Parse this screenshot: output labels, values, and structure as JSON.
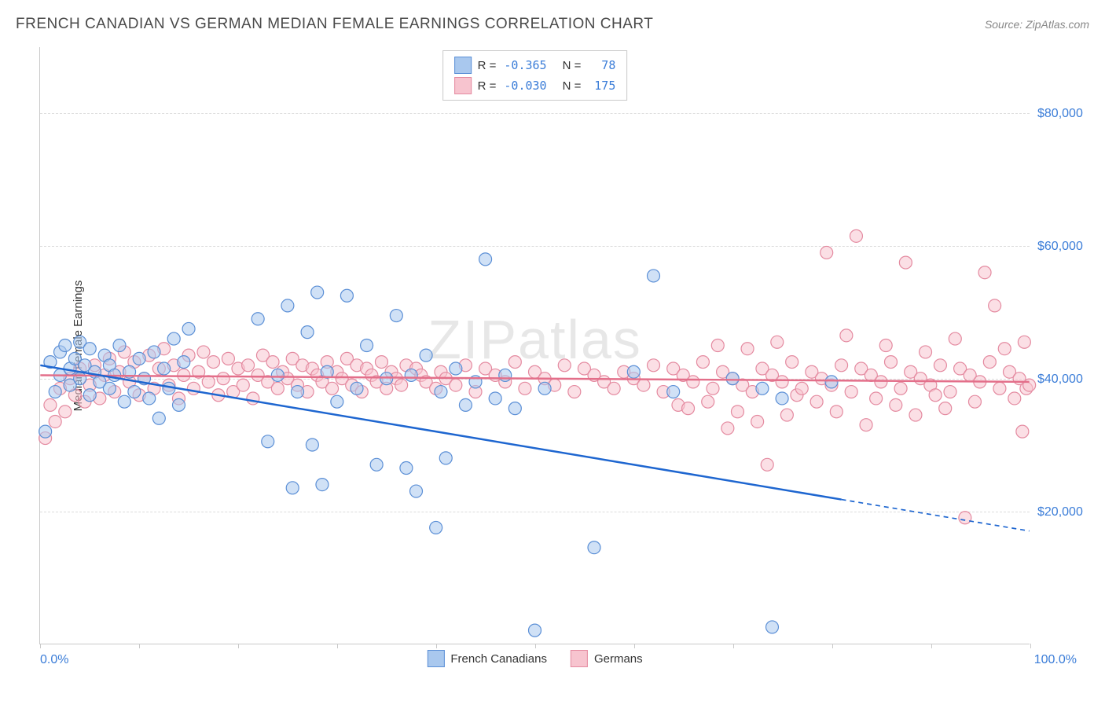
{
  "title": "FRENCH CANADIAN VS GERMAN MEDIAN FEMALE EARNINGS CORRELATION CHART",
  "source": "Source: ZipAtlas.com",
  "watermark": "ZIPatlas",
  "chart": {
    "type": "scatter",
    "y_label": "Median Female Earnings",
    "xlim": [
      0,
      100
    ],
    "ylim": [
      0,
      90000
    ],
    "x_start_label": "0.0%",
    "x_end_label": "100.0%",
    "x_ticks": [
      0,
      10,
      20,
      30,
      40,
      50,
      60,
      70,
      80,
      90,
      100
    ],
    "y_gridlines": [
      {
        "value": 20000,
        "label": "$20,000"
      },
      {
        "value": 40000,
        "label": "$40,000"
      },
      {
        "value": 60000,
        "label": "$60,000"
      },
      {
        "value": 80000,
        "label": "$80,000"
      }
    ],
    "grid_color": "#dcdcdc",
    "background_color": "#ffffff",
    "axis_color": "#c9c9c9",
    "tick_label_color": "#3b7dd8",
    "marker_radius": 8,
    "marker_stroke_width": 1.2,
    "trend_line_width": 2.5,
    "series": [
      {
        "name": "French Canadians",
        "fill_color": "#a9c8ee",
        "fill_opacity": 0.55,
        "stroke_color": "#5b8fd6",
        "stats": {
          "R_label": "R =",
          "R": "-0.365",
          "N_label": "N =",
          "N": "78"
        },
        "trend": {
          "color": "#1e66d0",
          "y_at_x0": 42000,
          "y_at_x100": 17000,
          "solid_until_x": 81
        },
        "points": [
          [
            0.5,
            32000
          ],
          [
            1,
            42500
          ],
          [
            1.5,
            38000
          ],
          [
            2,
            44000
          ],
          [
            2,
            40500
          ],
          [
            2.5,
            45000
          ],
          [
            3,
            41500
          ],
          [
            3,
            39000
          ],
          [
            3.5,
            43000
          ],
          [
            4,
            45500
          ],
          [
            4,
            40000
          ],
          [
            4.5,
            42000
          ],
          [
            5,
            44500
          ],
          [
            5,
            37500
          ],
          [
            5.5,
            41000
          ],
          [
            6,
            39500
          ],
          [
            6.5,
            43500
          ],
          [
            7,
            38500
          ],
          [
            7,
            42000
          ],
          [
            7.5,
            40500
          ],
          [
            8,
            45000
          ],
          [
            8.5,
            36500
          ],
          [
            9,
            41000
          ],
          [
            9.5,
            38000
          ],
          [
            10,
            43000
          ],
          [
            10.5,
            40000
          ],
          [
            11,
            37000
          ],
          [
            11.5,
            44000
          ],
          [
            12,
            34000
          ],
          [
            12.5,
            41500
          ],
          [
            13,
            38500
          ],
          [
            13.5,
            46000
          ],
          [
            14,
            36000
          ],
          [
            14.5,
            42500
          ],
          [
            15,
            47500
          ],
          [
            22,
            49000
          ],
          [
            23,
            30500
          ],
          [
            24,
            40500
          ],
          [
            25,
            51000
          ],
          [
            25.5,
            23500
          ],
          [
            26,
            38000
          ],
          [
            27,
            47000
          ],
          [
            27.5,
            30000
          ],
          [
            28,
            53000
          ],
          [
            28.5,
            24000
          ],
          [
            29,
            41000
          ],
          [
            30,
            36500
          ],
          [
            31,
            52500
          ],
          [
            32,
            38500
          ],
          [
            33,
            45000
          ],
          [
            34,
            27000
          ],
          [
            35,
            40000
          ],
          [
            36,
            49500
          ],
          [
            37,
            26500
          ],
          [
            37.5,
            40500
          ],
          [
            38,
            23000
          ],
          [
            39,
            43500
          ],
          [
            40,
            17500
          ],
          [
            40.5,
            38000
          ],
          [
            41,
            28000
          ],
          [
            42,
            41500
          ],
          [
            43,
            36000
          ],
          [
            44,
            39500
          ],
          [
            45,
            58000
          ],
          [
            46,
            37000
          ],
          [
            47,
            40500
          ],
          [
            48,
            35500
          ],
          [
            50,
            2000
          ],
          [
            51,
            38500
          ],
          [
            56,
            14500
          ],
          [
            60,
            41000
          ],
          [
            62,
            55500
          ],
          [
            64,
            38000
          ],
          [
            70,
            40000
          ],
          [
            73,
            38500
          ],
          [
            74,
            2500
          ],
          [
            75,
            37000
          ],
          [
            80,
            39500
          ]
        ]
      },
      {
        "name": "Germans",
        "fill_color": "#f7c4cf",
        "fill_opacity": 0.55,
        "stroke_color": "#e48aa0",
        "stats": {
          "R_label": "R =",
          "R": "-0.030",
          "N_label": "N =",
          "N": "175"
        },
        "trend": {
          "color": "#e36f8a",
          "y_at_x0": 40500,
          "y_at_x100": 39500,
          "solid_until_x": 100
        },
        "points": [
          [
            0.5,
            31000
          ],
          [
            1,
            36000
          ],
          [
            1.5,
            33500
          ],
          [
            2,
            38500
          ],
          [
            2.5,
            35000
          ],
          [
            3,
            40000
          ],
          [
            3.5,
            37500
          ],
          [
            4,
            41500
          ],
          [
            4.5,
            36500
          ],
          [
            5,
            39000
          ],
          [
            5.5,
            42000
          ],
          [
            6,
            37000
          ],
          [
            6.5,
            40500
          ],
          [
            7,
            43000
          ],
          [
            7.5,
            38000
          ],
          [
            8,
            41000
          ],
          [
            8.5,
            44000
          ],
          [
            9,
            39500
          ],
          [
            9.5,
            42500
          ],
          [
            10,
            37500
          ],
          [
            10.5,
            40000
          ],
          [
            11,
            43500
          ],
          [
            11.5,
            38500
          ],
          [
            12,
            41500
          ],
          [
            12.5,
            44500
          ],
          [
            13,
            39000
          ],
          [
            13.5,
            42000
          ],
          [
            14,
            37000
          ],
          [
            14.5,
            40500
          ],
          [
            15,
            43500
          ],
          [
            15.5,
            38500
          ],
          [
            16,
            41000
          ],
          [
            16.5,
            44000
          ],
          [
            17,
            39500
          ],
          [
            17.5,
            42500
          ],
          [
            18,
            37500
          ],
          [
            18.5,
            40000
          ],
          [
            19,
            43000
          ],
          [
            19.5,
            38000
          ],
          [
            20,
            41500
          ],
          [
            20.5,
            39000
          ],
          [
            21,
            42000
          ],
          [
            21.5,
            37000
          ],
          [
            22,
            40500
          ],
          [
            22.5,
            43500
          ],
          [
            23,
            39500
          ],
          [
            23.5,
            42500
          ],
          [
            24,
            38500
          ],
          [
            24.5,
            41000
          ],
          [
            25,
            40000
          ],
          [
            25.5,
            43000
          ],
          [
            26,
            39000
          ],
          [
            26.5,
            42000
          ],
          [
            27,
            38000
          ],
          [
            27.5,
            41500
          ],
          [
            28,
            40500
          ],
          [
            28.5,
            39500
          ],
          [
            29,
            42500
          ],
          [
            29.5,
            38500
          ],
          [
            30,
            41000
          ],
          [
            30.5,
            40000
          ],
          [
            31,
            43000
          ],
          [
            31.5,
            39000
          ],
          [
            32,
            42000
          ],
          [
            32.5,
            38000
          ],
          [
            33,
            41500
          ],
          [
            33.5,
            40500
          ],
          [
            34,
            39500
          ],
          [
            34.5,
            42500
          ],
          [
            35,
            38500
          ],
          [
            35.5,
            41000
          ],
          [
            36,
            40000
          ],
          [
            36.5,
            39000
          ],
          [
            37,
            42000
          ],
          [
            38,
            41500
          ],
          [
            38.5,
            40500
          ],
          [
            39,
            39500
          ],
          [
            40,
            38500
          ],
          [
            40.5,
            41000
          ],
          [
            41,
            40000
          ],
          [
            42,
            39000
          ],
          [
            43,
            42000
          ],
          [
            44,
            38000
          ],
          [
            45,
            41500
          ],
          [
            46,
            40500
          ],
          [
            47,
            39500
          ],
          [
            48,
            42500
          ],
          [
            49,
            38500
          ],
          [
            50,
            41000
          ],
          [
            51,
            40000
          ],
          [
            52,
            39000
          ],
          [
            53,
            42000
          ],
          [
            54,
            38000
          ],
          [
            55,
            41500
          ],
          [
            56,
            40500
          ],
          [
            57,
            39500
          ],
          [
            58,
            38500
          ],
          [
            59,
            41000
          ],
          [
            60,
            40000
          ],
          [
            61,
            39000
          ],
          [
            62,
            42000
          ],
          [
            63,
            38000
          ],
          [
            64,
            41500
          ],
          [
            64.5,
            36000
          ],
          [
            65,
            40500
          ],
          [
            65.5,
            35500
          ],
          [
            66,
            39500
          ],
          [
            67,
            42500
          ],
          [
            67.5,
            36500
          ],
          [
            68,
            38500
          ],
          [
            68.5,
            45000
          ],
          [
            69,
            41000
          ],
          [
            69.5,
            32500
          ],
          [
            70,
            40000
          ],
          [
            70.5,
            35000
          ],
          [
            71,
            39000
          ],
          [
            71.5,
            44500
          ],
          [
            72,
            38000
          ],
          [
            72.5,
            33500
          ],
          [
            73,
            41500
          ],
          [
            73.5,
            27000
          ],
          [
            74,
            40500
          ],
          [
            74.5,
            45500
          ],
          [
            75,
            39500
          ],
          [
            75.5,
            34500
          ],
          [
            76,
            42500
          ],
          [
            76.5,
            37500
          ],
          [
            77,
            38500
          ],
          [
            78,
            41000
          ],
          [
            78.5,
            36500
          ],
          [
            79,
            40000
          ],
          [
            79.5,
            59000
          ],
          [
            80,
            39000
          ],
          [
            80.5,
            35000
          ],
          [
            81,
            42000
          ],
          [
            81.5,
            46500
          ],
          [
            82,
            38000
          ],
          [
            82.5,
            61500
          ],
          [
            83,
            41500
          ],
          [
            83.5,
            33000
          ],
          [
            84,
            40500
          ],
          [
            84.5,
            37000
          ],
          [
            85,
            39500
          ],
          [
            85.5,
            45000
          ],
          [
            86,
            42500
          ],
          [
            86.5,
            36000
          ],
          [
            87,
            38500
          ],
          [
            87.5,
            57500
          ],
          [
            88,
            41000
          ],
          [
            88.5,
            34500
          ],
          [
            89,
            40000
          ],
          [
            89.5,
            44000
          ],
          [
            90,
            39000
          ],
          [
            90.5,
            37500
          ],
          [
            91,
            42000
          ],
          [
            91.5,
            35500
          ],
          [
            92,
            38000
          ],
          [
            92.5,
            46000
          ],
          [
            93,
            41500
          ],
          [
            93.5,
            19000
          ],
          [
            94,
            40500
          ],
          [
            94.5,
            36500
          ],
          [
            95,
            39500
          ],
          [
            95.5,
            56000
          ],
          [
            96,
            42500
          ],
          [
            96.5,
            51000
          ],
          [
            97,
            38500
          ],
          [
            97.5,
            44500
          ],
          [
            98,
            41000
          ],
          [
            98.5,
            37000
          ],
          [
            99,
            40000
          ],
          [
            99.3,
            32000
          ],
          [
            99.5,
            45500
          ],
          [
            99.7,
            38500
          ],
          [
            100,
            39000
          ]
        ]
      }
    ],
    "footer_legend": [
      {
        "label": "French Canadians",
        "swatch_fill": "#a9c8ee",
        "swatch_border": "#5b8fd6"
      },
      {
        "label": "Germans",
        "swatch_fill": "#f7c4cf",
        "swatch_border": "#e48aa0"
      }
    ]
  }
}
